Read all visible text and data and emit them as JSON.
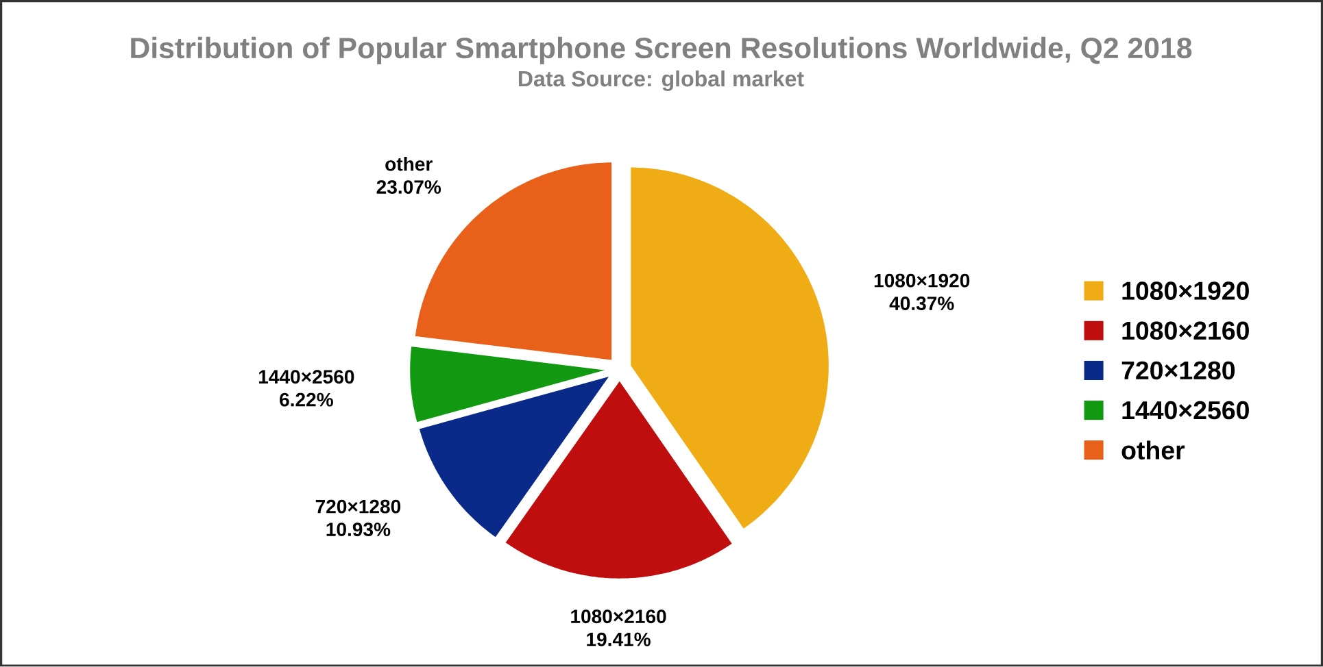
{
  "chart_data": {
    "type": "pie",
    "title": "Distribution of Popular Smartphone Screen Resolutions Worldwide, Q2 2018",
    "subtitle": "Data Source: global market",
    "categories": [
      "1080×1920",
      "1080×2160",
      "720×1280",
      "1440×2560",
      "other"
    ],
    "values": [
      40.37,
      19.41,
      10.93,
      6.22,
      23.07
    ],
    "value_labels": [
      "40.37%",
      "19.41%",
      "10.93%",
      "6.22%",
      "23.07%"
    ],
    "colors": [
      "#f0ac14",
      "#c00d0d",
      "#0a2a8a",
      "#119a11",
      "#e8601a"
    ],
    "legend": "right"
  }
}
